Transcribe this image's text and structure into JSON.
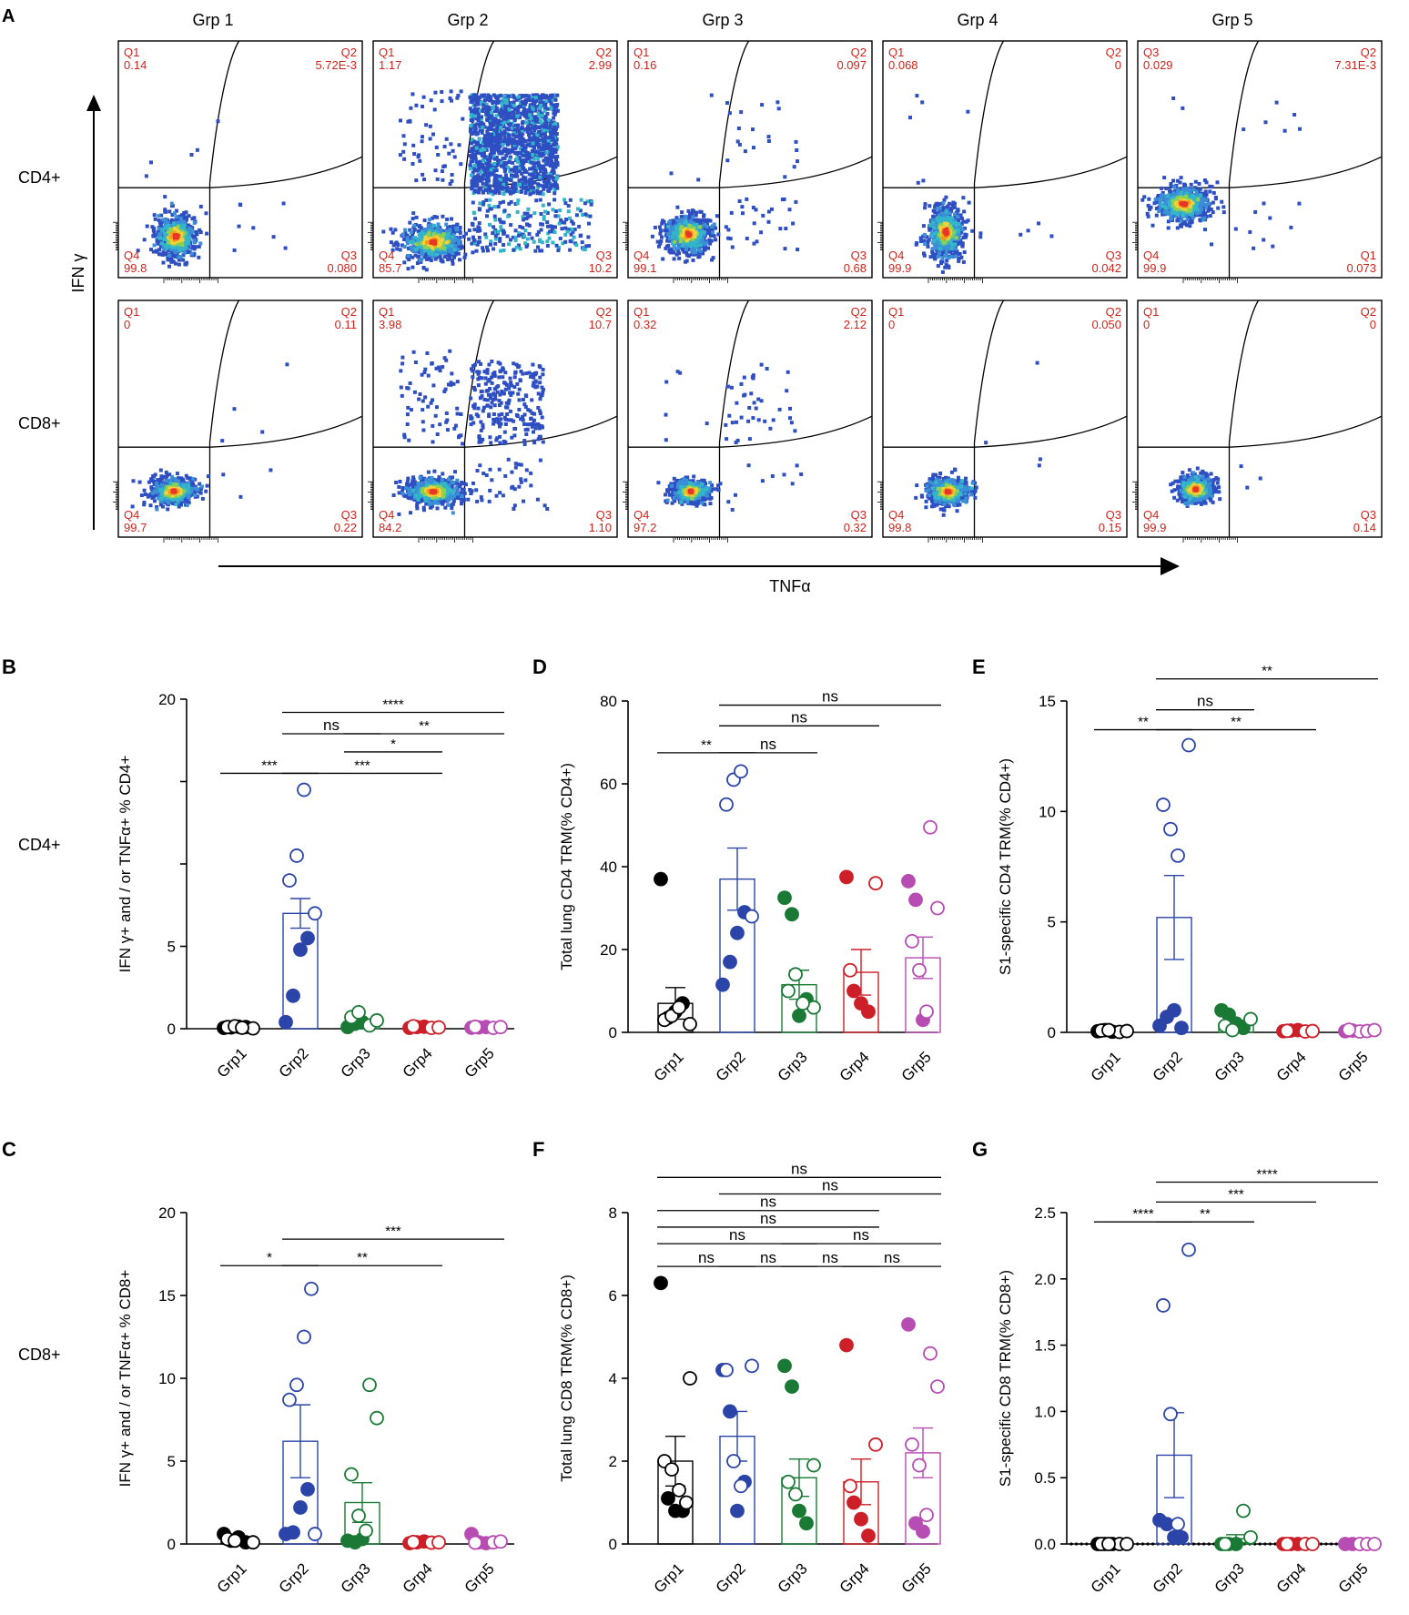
{
  "colors": {
    "grp1": "#000000",
    "grp2": "#2b44a8",
    "grp3": "#1a7a35",
    "grp4": "#cc1f27",
    "grp5": "#b74cb3",
    "gate_text": "#d0241c",
    "flow_low": "#2d4fc2",
    "flow_mid": "#33b6c9",
    "flow_high": "#e8352a"
  },
  "panelA": {
    "label": "A",
    "group_titles": [
      "Grp 1",
      "Grp 2",
      "Grp 3",
      "Grp 4",
      "Grp 5"
    ],
    "row_labels": [
      "CD4+",
      "CD8+"
    ],
    "y_axis_label": "IFN γ",
    "x_axis_label": "TNFα",
    "plots": [
      [
        {
          "tl": [
            "Q1",
            "0.14"
          ],
          "tr": [
            "Q2",
            "5.72E-3"
          ],
          "bl": [
            "Q4",
            "99.8"
          ],
          "br": [
            "Q3",
            "0.080"
          ]
        },
        {
          "tl": [
            "Q1",
            "1.17"
          ],
          "tr": [
            "Q2",
            "2.99"
          ],
          "bl": [
            "Q4",
            "85.7"
          ],
          "br": [
            "Q3",
            "10.2"
          ]
        },
        {
          "tl": [
            "Q1",
            "0.16"
          ],
          "tr": [
            "Q2",
            "0.097"
          ],
          "bl": [
            "Q4",
            "99.1"
          ],
          "br": [
            "Q3",
            "0.68"
          ]
        },
        {
          "tl": [
            "Q1",
            "0.068"
          ],
          "tr": [
            "Q2",
            "0"
          ],
          "bl": [
            "Q4",
            "99.9"
          ],
          "br": [
            "Q3",
            "0.042"
          ]
        },
        {
          "tl": [
            "Q3",
            "0.029"
          ],
          "tr": [
            "Q2",
            "7.31E-3"
          ],
          "bl": [
            "Q4",
            "99.9"
          ],
          "br": [
            "Q1",
            "0.073"
          ]
        }
      ],
      [
        {
          "tl": [
            "Q1",
            "0"
          ],
          "tr": [
            "Q2",
            "0.11"
          ],
          "bl": [
            "Q4",
            "99.7"
          ],
          "br": [
            "Q3",
            "0.22"
          ]
        },
        {
          "tl": [
            "Q1",
            "3.98"
          ],
          "tr": [
            "Q2",
            "10.7"
          ],
          "bl": [
            "Q4",
            "84.2"
          ],
          "br": [
            "Q3",
            "1.10"
          ]
        },
        {
          "tl": [
            "Q1",
            "0.32"
          ],
          "tr": [
            "Q2",
            "2.12"
          ],
          "bl": [
            "Q4",
            "97.2"
          ],
          "br": [
            "Q3",
            "0.32"
          ]
        },
        {
          "tl": [
            "Q1",
            "0"
          ],
          "tr": [
            "Q2",
            "0.050"
          ],
          "bl": [
            "Q4",
            "99.8"
          ],
          "br": [
            "Q3",
            "0.15"
          ]
        },
        {
          "tl": [
            "Q1",
            "0"
          ],
          "tr": [
            "Q2",
            "0"
          ],
          "bl": [
            "Q4",
            "99.9"
          ],
          "br": [
            "Q3",
            "0.14"
          ]
        }
      ]
    ]
  },
  "row_labels_bottom": {
    "cd4": "CD4+",
    "cd8": "CD8+"
  },
  "chart_data": [
    {
      "panel": "B",
      "type": "bar",
      "ylabel": "IFN γ+ and / or TNFα+  % CD4+",
      "categories": [
        "Grp1",
        "Grp2",
        "Grp3",
        "Grp4",
        "Grp5"
      ],
      "yticks": [
        "0",
        "5",
        "",
        "",
        "20"
      ],
      "ytick_values": [
        0,
        5,
        10,
        15,
        20
      ],
      "ylim": [
        0,
        20
      ],
      "means": [
        0.1,
        7.0,
        0.3,
        0.1,
        0.1
      ],
      "sem": [
        0.05,
        0.9,
        0.1,
        0.05,
        0.05
      ],
      "points": [
        {
          "filled": [
            0.05,
            0.08,
            0.12,
            0.1
          ],
          "open": [
            0.02,
            0.1,
            0.15,
            0.06
          ]
        },
        {
          "filled": [
            0.4,
            2.0,
            4.8,
            5.5
          ],
          "open": [
            7.0,
            9.0,
            10.5,
            14.5
          ]
        },
        {
          "filled": [
            0.1,
            0.3,
            0.4
          ],
          "open": [
            0.2,
            0.5,
            0.7,
            1.0
          ]
        },
        {
          "filled": [
            0.05,
            0.1,
            0.12
          ],
          "open": [
            0.05,
            0.08,
            0.15
          ]
        },
        {
          "filled": [
            0.06,
            0.08,
            0.1
          ],
          "open": [
            0.05,
            0.1,
            0.12
          ]
        }
      ],
      "sig": [
        {
          "label": "****",
          "from": 1,
          "to": 4,
          "y": 19.2
        },
        {
          "label": "ns",
          "from": 1,
          "to": 2,
          "y": 17.9
        },
        {
          "label": "**",
          "from": 2,
          "to": 4,
          "y": 17.9
        },
        {
          "label": "*",
          "from": 2,
          "to": 3,
          "y": 16.8
        },
        {
          "label": "***",
          "from": 0,
          "to": 1,
          "y": 15.5
        },
        {
          "label": "***",
          "from": 1,
          "to": 3,
          "y": 15.5
        }
      ]
    },
    {
      "panel": "D",
      "type": "bar",
      "ylabel": "Total lung CD4 TRM(% CD4+)",
      "categories": [
        "Grp1",
        "Grp2",
        "Grp3",
        "Grp4",
        "Grp5"
      ],
      "yticks": [
        "0",
        "20",
        "40",
        "60",
        "80"
      ],
      "ytick_values": [
        0,
        20,
        40,
        60,
        80
      ],
      "ylim": [
        0,
        80
      ],
      "means": [
        7.0,
        37.0,
        11.5,
        14.5,
        18.0
      ],
      "sem": [
        3.8,
        7.5,
        3.5,
        5.5,
        5.0
      ],
      "points": [
        {
          "filled": [
            37.0,
            3.5,
            5.0,
            7.0
          ],
          "open": [
            2.0,
            3.0,
            4.0,
            6.0
          ]
        },
        {
          "filled": [
            11.5,
            17.0,
            24.0,
            29.0
          ],
          "open": [
            28.0,
            55.0,
            61.0,
            63.0
          ]
        },
        {
          "filled": [
            32.5,
            28.5,
            4.0,
            8.0
          ],
          "open": [
            6.0,
            10.0,
            14.0,
            7.0
          ]
        },
        {
          "filled": [
            37.5,
            10.0,
            7.0,
            5.0
          ],
          "open": [
            36.0,
            15.0
          ]
        },
        {
          "filled": [
            36.5,
            32.0,
            3.0
          ],
          "open": [
            49.5,
            30.0,
            22.0,
            15.0,
            5.0
          ]
        }
      ],
      "sig": [
        {
          "label": "ns",
          "from": 1,
          "to": 4,
          "y": 79
        },
        {
          "label": "ns",
          "from": 1,
          "to": 3,
          "y": 74
        },
        {
          "label": "**",
          "from": 0,
          "to": 1,
          "y": 67.5
        },
        {
          "label": "ns",
          "from": 1,
          "to": 2,
          "y": 67.5
        }
      ]
    },
    {
      "panel": "E",
      "type": "bar",
      "ylabel": "S1-specific CD4 TRM(% CD4+)",
      "categories": [
        "Grp1",
        "Grp2",
        "Grp3",
        "Grp4",
        "Grp5"
      ],
      "yticks": [
        "0",
        "5",
        "10",
        "15"
      ],
      "ytick_values": [
        0,
        5,
        10,
        15
      ],
      "ylim": [
        0,
        15
      ],
      "means": [
        0.05,
        5.2,
        0.4,
        0.05,
        0.05
      ],
      "sem": [
        0.02,
        1.9,
        0.15,
        0.02,
        0.02
      ],
      "points": [
        {
          "filled": [
            0.05,
            0.1,
            0.03
          ],
          "open": [
            0.02,
            0.06,
            0.08,
            0.1
          ]
        },
        {
          "filled": [
            0.3,
            0.7,
            1.0,
            0.2
          ],
          "open": [
            13.0,
            10.3,
            9.2,
            8.0
          ]
        },
        {
          "filled": [
            1.0,
            0.8,
            0.4,
            0.2
          ],
          "open": [
            0.6,
            0.3,
            0.1
          ]
        },
        {
          "filled": [
            0.05,
            0.08,
            0.1
          ],
          "open": [
            0.04,
            0.06,
            0.07
          ]
        },
        {
          "filled": [
            0.05,
            0.08
          ],
          "open": [
            0.04,
            0.06,
            0.1,
            0.12
          ]
        }
      ],
      "sig": [
        {
          "label": "**",
          "from": 1,
          "to": 4,
          "y": 16.0
        },
        {
          "label": "ns",
          "from": 1,
          "to": 2,
          "y": 14.6
        },
        {
          "label": "**",
          "from": 0,
          "to": 1,
          "y": 13.7
        },
        {
          "label": "**",
          "from": 1,
          "to": 3,
          "y": 13.7
        }
      ]
    },
    {
      "panel": "C",
      "type": "bar",
      "ylabel": "IFN γ+ and / or TNFα+  % CD8+",
      "categories": [
        "Grp1",
        "Grp2",
        "Grp3",
        "Grp4",
        "Grp5"
      ],
      "yticks": [
        "0",
        "5",
        "10",
        "15",
        "20"
      ],
      "ytick_values": [
        0,
        5,
        10,
        15,
        20
      ],
      "ylim": [
        0,
        20
      ],
      "means": [
        0.2,
        6.2,
        2.5,
        0.1,
        0.1
      ],
      "sem": [
        0.1,
        2.2,
        1.2,
        0.05,
        0.05
      ],
      "points": [
        {
          "filled": [
            0.6,
            0.2,
            0.4,
            0.1
          ],
          "open": [
            0.1,
            0.3,
            0.2
          ]
        },
        {
          "filled": [
            0.6,
            0.7,
            2.2,
            3.3
          ],
          "open": [
            0.6,
            8.7,
            9.6,
            12.5,
            15.4
          ]
        },
        {
          "filled": [
            0.2,
            0.1,
            0.3
          ],
          "open": [
            9.6,
            7.6,
            4.2,
            1.7,
            0.8
          ]
        },
        {
          "filled": [
            0.05,
            0.1,
            0.15
          ],
          "open": [
            0.08,
            0.1,
            0.12
          ]
        },
        {
          "filled": [
            0.6,
            0.1,
            0.05
          ],
          "open": [
            0.1,
            0.15,
            0.08
          ]
        }
      ],
      "sig": [
        {
          "label": "***",
          "from": 1,
          "to": 4,
          "y": 18.4
        },
        {
          "label": "*",
          "from": 0,
          "to": 1,
          "y": 16.8
        },
        {
          "label": "**",
          "from": 1,
          "to": 3,
          "y": 16.8
        }
      ]
    },
    {
      "panel": "F",
      "type": "bar",
      "ylabel": "Total lung CD8 TRM(% CD8+)",
      "categories": [
        "Grp1",
        "Grp2",
        "Grp3",
        "Grp4",
        "Grp5"
      ],
      "yticks": [
        "0",
        "2",
        "4",
        "6",
        "8"
      ],
      "ytick_values": [
        0,
        2,
        4,
        6,
        8
      ],
      "ylim": [
        0,
        8
      ],
      "means": [
        2.0,
        2.6,
        1.6,
        1.5,
        2.2
      ],
      "sem": [
        0.6,
        0.6,
        0.45,
        0.55,
        0.6
      ],
      "points": [
        {
          "filled": [
            6.3,
            1.1,
            0.8,
            0.8
          ],
          "open": [
            4.0,
            2.0,
            1.8,
            1.3,
            1.0
          ]
        },
        {
          "filled": [
            4.2,
            3.2,
            0.8,
            1.5
          ],
          "open": [
            4.3,
            4.2,
            2.0,
            1.4
          ]
        },
        {
          "filled": [
            4.3,
            3.8,
            0.8,
            0.5
          ],
          "open": [
            1.9,
            1.5,
            1.2
          ]
        },
        {
          "filled": [
            4.8,
            1.0,
            0.6,
            0.2
          ],
          "open": [
            2.4,
            1.4
          ]
        },
        {
          "filled": [
            5.3,
            0.5,
            0.3
          ],
          "open": [
            4.6,
            3.8,
            2.4,
            1.9,
            0.7
          ]
        }
      ],
      "sig": [
        {
          "label": "ns",
          "from": 0,
          "to": 4,
          "y": 8.85
        },
        {
          "label": "ns",
          "from": 1,
          "to": 4,
          "y": 8.45
        },
        {
          "label": "ns",
          "from": 0,
          "to": 3,
          "y": 8.05
        },
        {
          "label": "ns",
          "from": 0,
          "to": 3,
          "y": 7.65
        },
        {
          "label": "ns",
          "from": 0,
          "to": 2,
          "y": 7.25
        },
        {
          "label": "ns",
          "from": 2,
          "to": 4,
          "y": 7.25
        },
        {
          "label": "ns",
          "from": 0,
          "to": 1,
          "y": 6.7
        },
        {
          "label": "ns",
          "from": 1,
          "to": 2,
          "y": 6.7
        },
        {
          "label": "ns",
          "from": 2,
          "to": 3,
          "y": 6.7
        },
        {
          "label": "ns",
          "from": 3,
          "to": 4,
          "y": 6.7
        }
      ]
    },
    {
      "panel": "G",
      "type": "bar",
      "ylabel": "S1-specific CD8 TRM(% CD8+)",
      "categories": [
        "Grp1",
        "Grp2",
        "Grp3",
        "Grp4",
        "Grp5"
      ],
      "yticks": [
        "0.0",
        "0.5",
        "1.0",
        "1.5",
        "2.0",
        "2.5"
      ],
      "ytick_values": [
        0,
        0.5,
        1.0,
        1.5,
        2.0,
        2.5
      ],
      "ylim": [
        0,
        2.5
      ],
      "means": [
        0.0,
        0.67,
        0.04,
        0.0,
        0.0
      ],
      "sem": [
        0.0,
        0.32,
        0.03,
        0.0,
        0.0
      ],
      "points": [
        {
          "filled": [
            0.0,
            0.0,
            0.0
          ],
          "open": [
            0.0,
            0.0,
            0.0,
            0.0
          ]
        },
        {
          "filled": [
            0.18,
            0.15,
            0.05,
            0.05
          ],
          "open": [
            2.22,
            1.8,
            0.98,
            0.15
          ]
        },
        {
          "filled": [
            0.0,
            0.0,
            0.0
          ],
          "open": [
            0.25,
            0.05,
            0.0
          ]
        },
        {
          "filled": [
            0.0,
            0.0,
            0.0
          ],
          "open": [
            0.0,
            0.0,
            0.0
          ]
        },
        {
          "filled": [
            0.0,
            0.0
          ],
          "open": [
            0.0,
            0.0,
            0.0
          ]
        }
      ],
      "sig": [
        {
          "label": "****",
          "from": 1,
          "to": 4,
          "y": 2.73
        },
        {
          "label": "***",
          "from": 1,
          "to": 3,
          "y": 2.58
        },
        {
          "label": "****",
          "from": 0,
          "to": 1,
          "y": 2.43
        },
        {
          "label": "**",
          "from": 1,
          "to": 2,
          "y": 2.43
        }
      ]
    }
  ]
}
